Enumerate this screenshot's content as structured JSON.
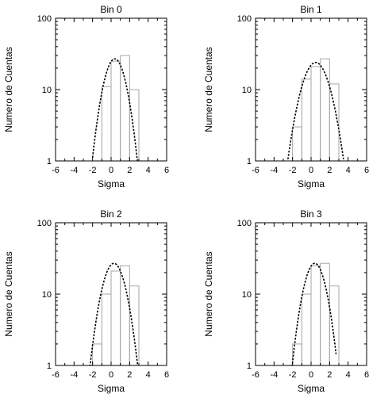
{
  "chart_data": [
    {
      "type": "histogram-with-fit",
      "title": "Bin 0",
      "xlabel": "Sigma",
      "ylabel": "Numero de Cuentas",
      "xlim": [
        -6,
        6
      ],
      "ylim": [
        1,
        100
      ],
      "yscale": "log",
      "xticks": [
        "-6",
        "-4",
        "-2",
        "0",
        "2",
        "4",
        "6"
      ],
      "yticks": [
        "1",
        "10",
        "100"
      ],
      "histogram": {
        "bin_edges": [
          -2,
          -1,
          0,
          1,
          2,
          3
        ],
        "counts": [
          1,
          11,
          25,
          30,
          10
        ]
      },
      "fit": {
        "shape": "gaussian",
        "peak": 27,
        "center": 0.4,
        "sigma": 0.95,
        "x_range": [
          -2,
          2.9
        ]
      }
    },
    {
      "type": "histogram-with-fit",
      "title": "Bin 1",
      "xlabel": "Sigma",
      "ylabel": "Numero de Cuentas",
      "xlim": [
        -6,
        6
      ],
      "ylim": [
        1,
        100
      ],
      "yscale": "log",
      "xticks": [
        "-6",
        "-4",
        "-2",
        "0",
        "2",
        "4",
        "6"
      ],
      "yticks": [
        "1",
        "10",
        "100"
      ],
      "histogram": {
        "bin_edges": [
          -3,
          -2,
          -1,
          0,
          1,
          2,
          3
        ],
        "counts": [
          1,
          3,
          14,
          21,
          27,
          12
        ]
      },
      "fit": {
        "shape": "gaussian",
        "peak": 24,
        "center": 0.5,
        "sigma": 1.2,
        "x_range": [
          -2.5,
          3.5
        ]
      }
    },
    {
      "type": "histogram-with-fit",
      "title": "Bin 2",
      "xlabel": "Sigma",
      "ylabel": "Numero de Cuentas",
      "xlim": [
        -6,
        6
      ],
      "ylim": [
        1,
        100
      ],
      "yscale": "log",
      "xticks": [
        "-6",
        "-4",
        "-2",
        "0",
        "2",
        "4",
        "6"
      ],
      "yticks": [
        "1",
        "10",
        "100"
      ],
      "histogram": {
        "bin_edges": [
          -3,
          -2,
          -1,
          0,
          1,
          2,
          3
        ],
        "counts": [
          1,
          2,
          10,
          21,
          25,
          13
        ]
      },
      "fit": {
        "shape": "gaussian",
        "peak": 27,
        "center": 0.3,
        "sigma": 1.0,
        "x_range": [
          -2.4,
          3.0
        ]
      }
    },
    {
      "type": "histogram-with-fit",
      "title": "Bin 3",
      "xlabel": "Sigma",
      "ylabel": "Numero de Cuentas",
      "xlim": [
        -6,
        6
      ],
      "ylim": [
        1,
        100
      ],
      "yscale": "log",
      "xticks": [
        "-6",
        "-4",
        "-2",
        "0",
        "2",
        "4",
        "6"
      ],
      "yticks": [
        "1",
        "10",
        "100"
      ],
      "histogram": {
        "bin_edges": [
          -3,
          -2,
          -1,
          0,
          1,
          2,
          3
        ],
        "counts": [
          1,
          2,
          10,
          25,
          27,
          13
        ]
      },
      "fit": {
        "shape": "gaussian",
        "peak": 27,
        "center": 0.4,
        "sigma": 0.95,
        "x_range": [
          -2.2,
          2.7
        ]
      }
    }
  ]
}
